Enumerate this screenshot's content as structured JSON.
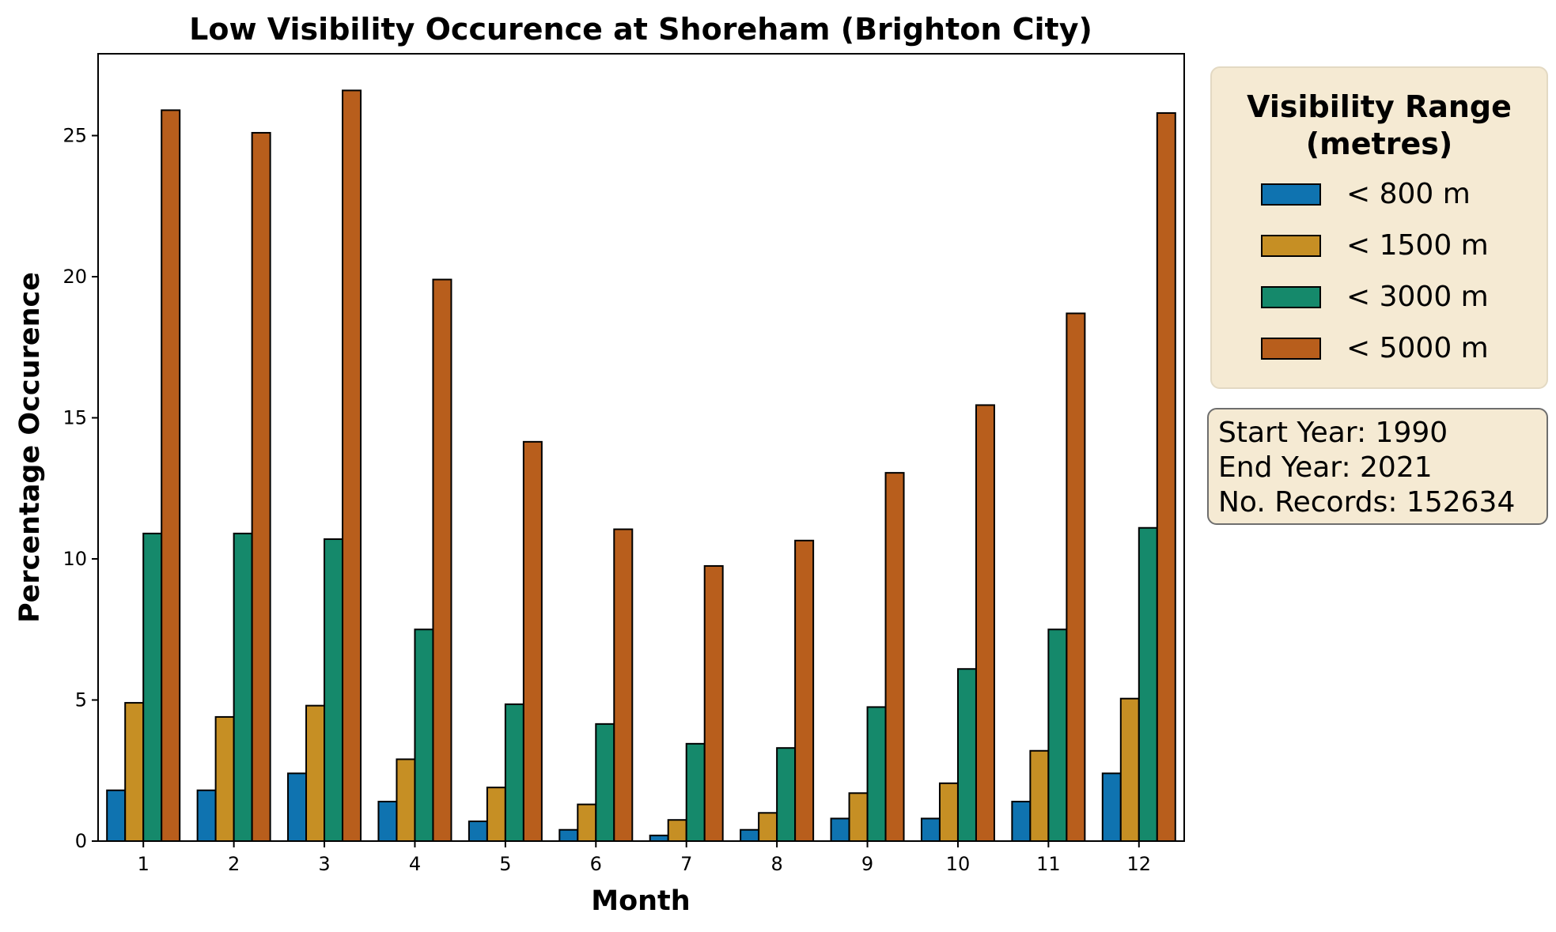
{
  "chart_data": {
    "type": "bar",
    "title": "Low Visibility Occurence at Shoreham (Brighton City)",
    "xlabel": "Month",
    "ylabel": "Percentage Occurence",
    "ylim": [
      0,
      27.9
    ],
    "yticks": [
      0,
      5,
      10,
      15,
      20,
      25
    ],
    "grid": false,
    "categories": [
      "1",
      "2",
      "3",
      "4",
      "5",
      "6",
      "7",
      "8",
      "9",
      "10",
      "11",
      "12"
    ],
    "series": [
      {
        "name": "< 800 m",
        "color": "#0f73b0",
        "values": [
          1.8,
          1.8,
          2.4,
          1.4,
          0.7,
          0.4,
          0.2,
          0.4,
          0.8,
          0.8,
          1.4,
          2.4
        ]
      },
      {
        "name": "< 1500 m",
        "color": "#c68f24",
        "values": [
          4.9,
          4.4,
          4.8,
          2.9,
          1.9,
          1.3,
          0.75,
          1.0,
          1.7,
          2.05,
          3.2,
          5.05
        ]
      },
      {
        "name": "< 3000 m",
        "color": "#15896b",
        "values": [
          10.9,
          10.9,
          10.7,
          7.5,
          4.85,
          4.15,
          3.45,
          3.3,
          4.75,
          6.1,
          7.5,
          11.1
        ]
      },
      {
        "name": "< 5000 m",
        "color": "#b85e1c",
        "values": [
          25.9,
          25.1,
          26.6,
          19.9,
          14.15,
          11.05,
          9.75,
          10.65,
          13.05,
          15.45,
          18.7,
          25.8
        ]
      }
    ],
    "legend": {
      "title": "Visibility Range (metres)",
      "placement": "outside-right"
    },
    "info": {
      "start_year": "Start Year: 1990",
      "end_year": "End Year: 2021",
      "records": "No. Records: 152634"
    }
  }
}
